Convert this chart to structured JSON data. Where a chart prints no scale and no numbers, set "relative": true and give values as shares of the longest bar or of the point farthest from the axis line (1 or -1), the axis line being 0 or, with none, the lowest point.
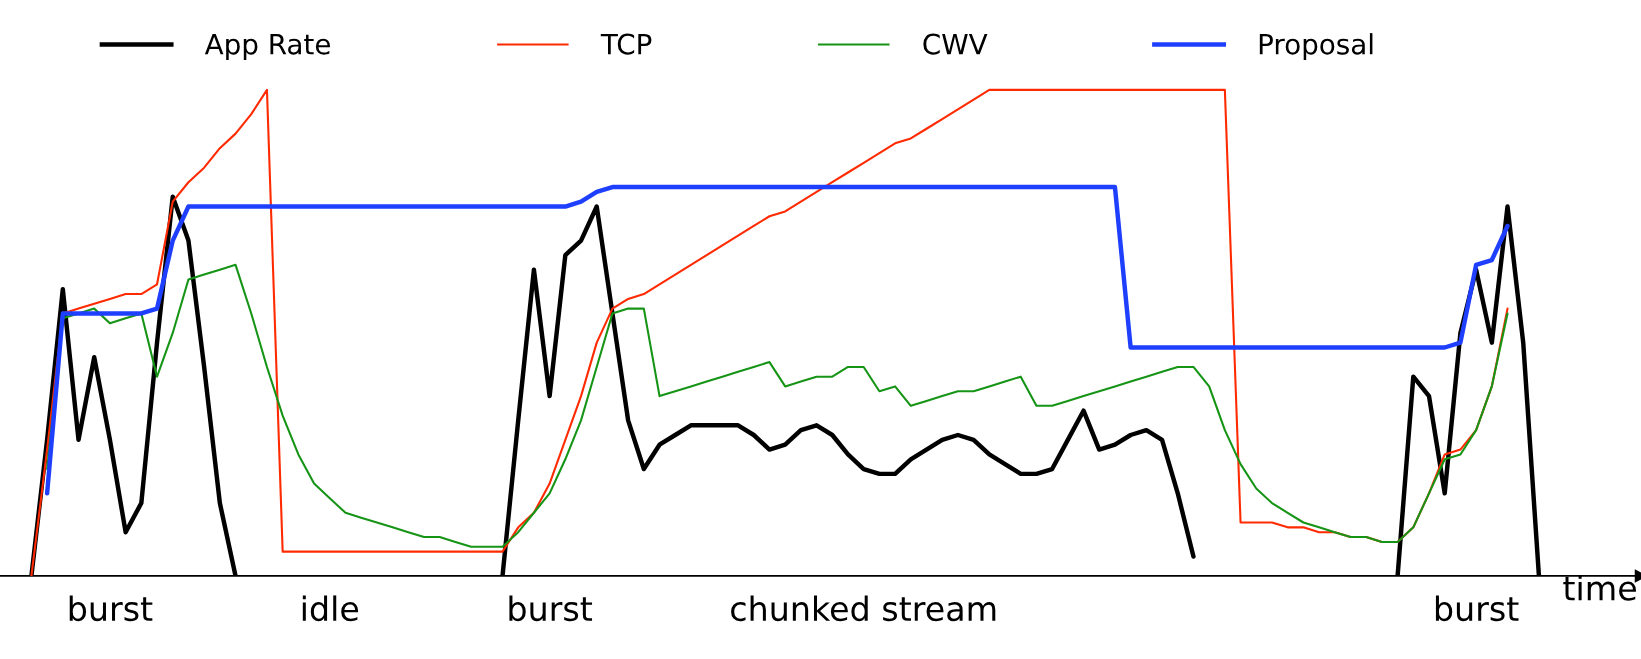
{
  "chart_data": {
    "type": "line",
    "relative": true,
    "xlabel": "time",
    "legend": "top",
    "grid": false,
    "marker": "none",
    "line_style": "solid",
    "tick_labels": "x",
    "categories": [
      null,
      null,
      null,
      null,
      null,
      "burst",
      null,
      null,
      null,
      null,
      null,
      null,
      null,
      null,
      null,
      null,
      null,
      null,
      null,
      "idle",
      null,
      null,
      null,
      null,
      null,
      null,
      null,
      null,
      null,
      null,
      null,
      null,
      null,
      "burst",
      null,
      null,
      null,
      null,
      null,
      null,
      null,
      null,
      null,
      null,
      null,
      null,
      null,
      null,
      null,
      null,
      null,
      null,
      null,
      "chunked stream",
      null,
      null,
      null,
      null,
      null,
      null,
      null,
      null,
      null,
      null,
      null,
      null,
      null,
      null,
      null,
      null,
      null,
      null,
      null,
      null,
      null,
      null,
      null,
      null,
      null,
      null,
      null,
      null,
      null,
      null,
      null,
      null,
      null,
      null,
      null,
      null,
      null,
      null,
      "burst",
      null,
      null,
      null,
      null,
      null,
      null,
      null,
      null
    ],
    "series": [
      {
        "name": "App Rate",
        "color": "#000000",
        "values": [
          0,
          0.28,
          0.59,
          0.28,
          0.45,
          0.28,
          0.09,
          0.15,
          0.48,
          0.78,
          0.69,
          0.43,
          0.15,
          0,
          null,
          null,
          null,
          null,
          null,
          null,
          null,
          null,
          null,
          null,
          null,
          null,
          null,
          null,
          null,
          null,
          0,
          0.32,
          0.63,
          0.37,
          0.66,
          0.69,
          0.76,
          0.54,
          0.32,
          0.22,
          0.27,
          0.29,
          0.31,
          0.31,
          0.31,
          0.31,
          0.29,
          0.26,
          0.27,
          0.3,
          0.31,
          0.29,
          0.25,
          0.22,
          0.21,
          0.21,
          0.24,
          0.26,
          0.28,
          0.29,
          0.28,
          0.25,
          0.23,
          0.21,
          0.21,
          0.22,
          0.28,
          0.34,
          0.26,
          0.27,
          0.29,
          0.3,
          0.28,
          0.17,
          0.04,
          null,
          null,
          null,
          null,
          null,
          null,
          null,
          null,
          null,
          null,
          null,
          null,
          0,
          0.41,
          0.37,
          0.17,
          0.5,
          0.63,
          0.48,
          0.76,
          0.48,
          0,
          null,
          null,
          null,
          null
        ]
      },
      {
        "name": "TCP",
        "color": "#ff2a00",
        "values": [
          0,
          0.26,
          0.54,
          0.55,
          0.56,
          0.57,
          0.58,
          0.58,
          0.6,
          0.77,
          0.81,
          0.84,
          0.88,
          0.91,
          0.95,
          1,
          0.05,
          0.05,
          0.05,
          0.05,
          0.05,
          0.05,
          0.05,
          0.05,
          0.05,
          0.05,
          0.05,
          0.05,
          0.05,
          0.05,
          0.05,
          0.1,
          0.13,
          0.19,
          0.28,
          0.37,
          0.48,
          0.55,
          0.57,
          0.58,
          0.6,
          0.62,
          0.64,
          0.66,
          0.68,
          0.7,
          0.72,
          0.74,
          0.75,
          0.77,
          0.79,
          0.81,
          0.83,
          0.85,
          0.87,
          0.89,
          0.9,
          0.92,
          0.94,
          0.96,
          0.98,
          1,
          1,
          1,
          1,
          1,
          1,
          1,
          1,
          1,
          1,
          1,
          1,
          1,
          1,
          1,
          1,
          0.11,
          0.11,
          0.11,
          0.1,
          0.1,
          0.09,
          0.09,
          0.08,
          0.08,
          0.07,
          0.07,
          0.1,
          0.17,
          0.25,
          0.26,
          0.3,
          0.39,
          0.55,
          null,
          null,
          null,
          null,
          null,
          null
        ]
      },
      {
        "name": "CWV",
        "color": "#169416",
        "values": [
          null,
          0.22,
          0.53,
          0.54,
          0.55,
          0.52,
          0.53,
          0.54,
          0.41,
          0.5,
          0.61,
          0.62,
          0.63,
          0.64,
          0.54,
          0.43,
          0.33,
          0.25,
          0.19,
          0.16,
          0.13,
          0.12,
          0.11,
          0.1,
          0.09,
          0.08,
          0.08,
          0.07,
          0.06,
          0.06,
          0.06,
          0.09,
          0.13,
          0.17,
          0.24,
          0.32,
          0.43,
          0.54,
          0.55,
          0.55,
          0.37,
          0.38,
          0.39,
          0.4,
          0.41,
          0.42,
          0.43,
          0.44,
          0.39,
          0.4,
          0.41,
          0.41,
          0.43,
          0.43,
          0.38,
          0.39,
          0.35,
          0.36,
          0.37,
          0.38,
          0.38,
          0.39,
          0.4,
          0.41,
          0.35,
          0.35,
          0.36,
          0.37,
          0.38,
          0.39,
          0.4,
          0.41,
          0.42,
          0.43,
          0.43,
          0.39,
          0.3,
          0.23,
          0.18,
          0.15,
          0.13,
          0.11,
          0.1,
          0.09,
          0.08,
          0.08,
          0.07,
          0.07,
          0.1,
          0.17,
          0.24,
          0.25,
          0.3,
          0.39,
          0.54,
          null,
          null,
          null,
          null,
          null,
          null
        ]
      },
      {
        "name": "Proposal",
        "color": "#1f3fff",
        "values": [
          null,
          0.17,
          0.54,
          0.54,
          0.54,
          0.54,
          0.54,
          0.54,
          0.55,
          0.69,
          0.76,
          0.76,
          0.76,
          0.76,
          0.76,
          0.76,
          0.76,
          0.76,
          0.76,
          0.76,
          0.76,
          0.76,
          0.76,
          0.76,
          0.76,
          0.76,
          0.76,
          0.76,
          0.76,
          0.76,
          0.76,
          0.76,
          0.76,
          0.76,
          0.76,
          0.77,
          0.79,
          0.8,
          0.8,
          0.8,
          0.8,
          0.8,
          0.8,
          0.8,
          0.8,
          0.8,
          0.8,
          0.8,
          0.8,
          0.8,
          0.8,
          0.8,
          0.8,
          0.8,
          0.8,
          0.8,
          0.8,
          0.8,
          0.8,
          0.8,
          0.8,
          0.8,
          0.8,
          0.8,
          0.8,
          0.8,
          0.8,
          0.8,
          0.8,
          0.8,
          0.47,
          0.47,
          0.47,
          0.47,
          0.47,
          0.47,
          0.47,
          0.47,
          0.47,
          0.47,
          0.47,
          0.47,
          0.47,
          0.47,
          0.47,
          0.47,
          0.47,
          0.47,
          0.47,
          0.47,
          0.47,
          0.48,
          0.64,
          0.65,
          0.72,
          null,
          null,
          null,
          null,
          null,
          null
        ]
      }
    ]
  }
}
